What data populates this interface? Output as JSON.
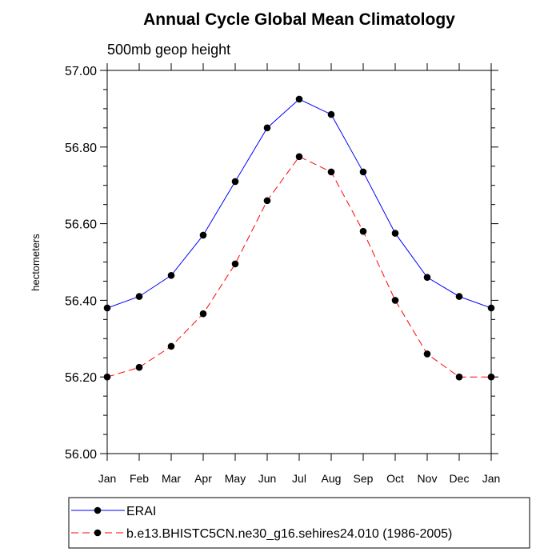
{
  "chart_data": {
    "type": "line",
    "title": "Annual Cycle Global Mean Climatology",
    "subtitle": "500mb geop height",
    "xlabel": "",
    "ylabel": "hectometers",
    "categories": [
      "Jan",
      "Feb",
      "Mar",
      "Apr",
      "May",
      "Jun",
      "Jul",
      "Aug",
      "Sep",
      "Oct",
      "Nov",
      "Dec",
      "Jan"
    ],
    "ylim": [
      56.0,
      57.0
    ],
    "yticks": [
      "56.00",
      "56.20",
      "56.40",
      "56.60",
      "56.80",
      "57.00"
    ],
    "grid": false,
    "legend_position": "bottom-left",
    "series": [
      {
        "name": "ERAI",
        "color": "#0000ff",
        "line_style": "solid",
        "marker": "filled-circle",
        "values": [
          56.38,
          56.41,
          56.465,
          56.57,
          56.71,
          56.85,
          56.925,
          56.885,
          56.735,
          56.575,
          56.46,
          56.41,
          56.38
        ]
      },
      {
        "name": "b.e13.BHISTC5CN.ne30_g16.sehires24.010 (1986-2005)",
        "color": "#ff0000",
        "line_style": "dashed",
        "marker": "filled-circle",
        "values": [
          56.2,
          56.225,
          56.28,
          56.365,
          56.495,
          56.66,
          56.775,
          56.735,
          56.58,
          56.4,
          56.26,
          56.2,
          56.2
        ]
      }
    ]
  }
}
